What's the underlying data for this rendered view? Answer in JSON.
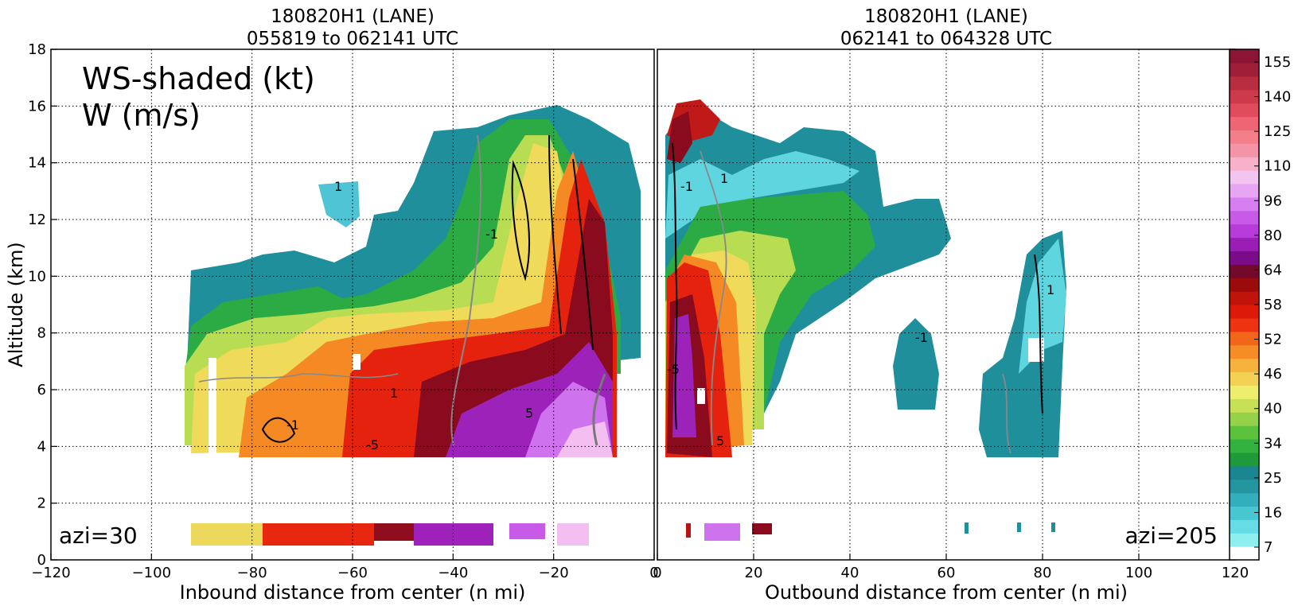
{
  "chart_data": [
    {
      "type": "heatmap",
      "title_lines": [
        "180820H1 (LANE)",
        "055819 to 062141 UTC"
      ],
      "xlabel": "Inbound distance from center (n mi)",
      "ylabel": "Altitude (km)",
      "xlim": [
        -120,
        0
      ],
      "ylim": [
        0,
        18
      ],
      "x_ticks": [
        "−120",
        "−100",
        "−80",
        "−60",
        "−40",
        "−20",
        "0"
      ],
      "x_tick_values": [
        -120,
        -100,
        -80,
        -60,
        -40,
        -20,
        0
      ],
      "y_ticks": [
        "0",
        "2",
        "4",
        "6",
        "8",
        "10",
        "12",
        "14",
        "16",
        "18"
      ],
      "y_tick_values": [
        0,
        2,
        4,
        6,
        8,
        10,
        12,
        14,
        16,
        18
      ],
      "grid": true,
      "annotation_title": "WS-shaded (kt)",
      "annotation_sub": "W (m/s)",
      "azi_label": "azi=30",
      "contour_labels": [
        "-1",
        "1",
        "5",
        "-5",
        "1",
        "-1"
      ]
    },
    {
      "type": "heatmap",
      "title_lines": [
        "180820H1 (LANE)",
        "062141 to 064328 UTC"
      ],
      "xlabel": "Outbound distance from center (n mi)",
      "xlim": [
        0,
        120
      ],
      "ylim": [
        0,
        18
      ],
      "x_ticks": [
        "0",
        "20",
        "40",
        "60",
        "80",
        "100",
        "120"
      ],
      "x_tick_values": [
        0,
        20,
        40,
        60,
        80,
        100,
        120
      ],
      "grid": true,
      "azi_label": "azi=205",
      "contour_labels": [
        "-1",
        "1",
        "-5",
        "5",
        "-1",
        "1"
      ]
    }
  ],
  "colorbar": {
    "labels": [
      "155",
      "140",
      "125",
      "110",
      "96",
      "80",
      "64",
      "58",
      "52",
      "46",
      "40",
      "34",
      "25",
      "16",
      "7"
    ],
    "colors": [
      "#ffffff",
      "#8fefef",
      "#66dde6",
      "#48c7d1",
      "#33aebb",
      "#24969f",
      "#1a8690",
      "#1f9a3b",
      "#33b23f",
      "#5cc23c",
      "#95d24a",
      "#c7e055",
      "#eded6e",
      "#f2d155",
      "#f5b23c",
      "#f58c26",
      "#f2661a",
      "#ee3312",
      "#dd1a0a",
      "#c0140a",
      "#9c0b0b",
      "#730a2c",
      "#7a0c8a",
      "#9a1db5",
      "#b63bd8",
      "#c85ae8",
      "#d77ff0",
      "#e6a6f2",
      "#f2c4f0",
      "#f7b1c8",
      "#f494a8",
      "#f27f8a",
      "#ee6673",
      "#e04c5c",
      "#cc3a4c",
      "#b82d40",
      "#a01f38",
      "#8c1434"
    ]
  }
}
